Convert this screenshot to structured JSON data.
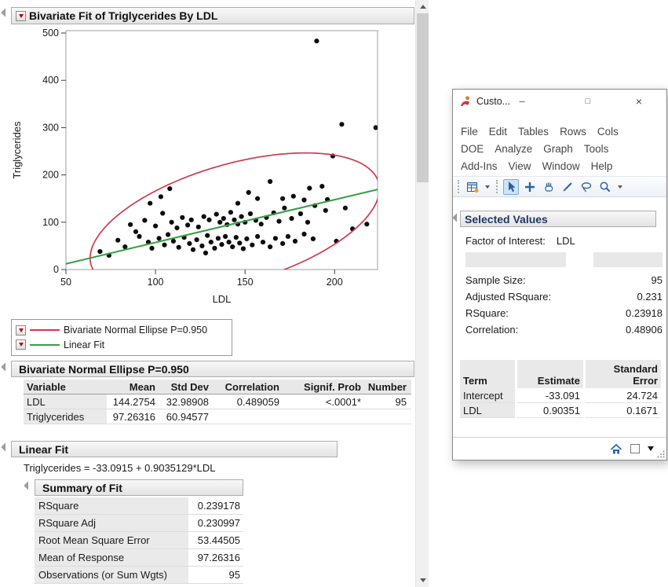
{
  "main_report": {
    "title": "Bivariate Fit of Triglycerides By LDL",
    "legend": {
      "items": [
        {
          "label": "Bivariate Normal Ellipse P=0.950",
          "color": "#cf3950"
        },
        {
          "label": "Linear Fit",
          "color": "#359e45"
        }
      ]
    },
    "ellipse_section": {
      "title": "Bivariate Normal Ellipse P=0.950",
      "table": {
        "columns": [
          "Variable",
          "Mean",
          "Std Dev",
          "Correlation",
          "Signif. Prob",
          "Number"
        ],
        "rows": [
          [
            "LDL",
            "144.2754",
            "32.98908",
            "0.489059",
            "<.0001*",
            "95"
          ],
          [
            "Triglycerides",
            "97.26316",
            "60.94577",
            "",
            "",
            ""
          ]
        ]
      }
    },
    "linear_fit_section": {
      "title": "Linear Fit",
      "equation": "Triglycerides = -33.0915 + 0.9035129*LDL"
    },
    "summary_of_fit": {
      "title": "Summary of Fit",
      "rows": [
        {
          "label": "RSquare",
          "value": "0.239178"
        },
        {
          "label": "RSquare Adj",
          "value": "0.230997"
        },
        {
          "label": "Root Mean Square Error",
          "value": "53.44505"
        },
        {
          "label": "Mean of Response",
          "value": "97.26316"
        },
        {
          "label": "Observations (or Sum Wgts)",
          "value": "95"
        }
      ]
    }
  },
  "chart_data": {
    "type": "scatter",
    "xlabel": "LDL",
    "ylabel": "Triglycerides",
    "xlim": [
      50,
      224
    ],
    "ylim": [
      0,
      505
    ],
    "xticks": [
      50,
      100,
      150,
      200
    ],
    "yticks": [
      0,
      100,
      200,
      300,
      400,
      500
    ],
    "points": [
      [
        190,
        483
      ],
      [
        204,
        307
      ],
      [
        223,
        300
      ],
      [
        199,
        240
      ],
      [
        164,
        186
      ],
      [
        171,
        150
      ],
      [
        177,
        155
      ],
      [
        183,
        147
      ],
      [
        186,
        172
      ],
      [
        193,
        176
      ],
      [
        196,
        148
      ],
      [
        152,
        163
      ],
      [
        157,
        150
      ],
      [
        146,
        140
      ],
      [
        108,
        171
      ],
      [
        103,
        154
      ],
      [
        97,
        140
      ],
      [
        201,
        60
      ],
      [
        210,
        86
      ],
      [
        218,
        96
      ],
      [
        206,
        130
      ],
      [
        69,
        38
      ],
      [
        74,
        30
      ],
      [
        79,
        62
      ],
      [
        83,
        48
      ],
      [
        86,
        95
      ],
      [
        89,
        80
      ],
      [
        91,
        70
      ],
      [
        94,
        104
      ],
      [
        96,
        58
      ],
      [
        98,
        45
      ],
      [
        100,
        92
      ],
      [
        102,
        66
      ],
      [
        104,
        119
      ],
      [
        105,
        52
      ],
      [
        107,
        74
      ],
      [
        109,
        100
      ],
      [
        110,
        60
      ],
      [
        112,
        88
      ],
      [
        113,
        47
      ],
      [
        115,
        110
      ],
      [
        116,
        68
      ],
      [
        118,
        94
      ],
      [
        119,
        55
      ],
      [
        120,
        105
      ],
      [
        121,
        42
      ],
      [
        123,
        63
      ],
      [
        124,
        90
      ],
      [
        126,
        50
      ],
      [
        127,
        112
      ],
      [
        128,
        35
      ],
      [
        129,
        72
      ],
      [
        130,
        105
      ],
      [
        131,
        58
      ],
      [
        133,
        45
      ],
      [
        134,
        117
      ],
      [
        135,
        66
      ],
      [
        136,
        100
      ],
      [
        137,
        53
      ],
      [
        138,
        108
      ],
      [
        139,
        70
      ],
      [
        140,
        95
      ],
      [
        141,
        58
      ],
      [
        142,
        121
      ],
      [
        143,
        48
      ],
      [
        144,
        105
      ],
      [
        145,
        68
      ],
      [
        146,
        96
      ],
      [
        147,
        56
      ],
      [
        148,
        112
      ],
      [
        149,
        44
      ],
      [
        150,
        100
      ],
      [
        151,
        65
      ],
      [
        153,
        118
      ],
      [
        154,
        52
      ],
      [
        156,
        104
      ],
      [
        157,
        70
      ],
      [
        159,
        96
      ],
      [
        160,
        58
      ],
      [
        162,
        110
      ],
      [
        164,
        48
      ],
      [
        166,
        120
      ],
      [
        167,
        66
      ],
      [
        169,
        102
      ],
      [
        171,
        55
      ],
      [
        172,
        130
      ],
      [
        174,
        70
      ],
      [
        176,
        108
      ],
      [
        178,
        60
      ],
      [
        181,
        118
      ],
      [
        183,
        75
      ],
      [
        185,
        100
      ],
      [
        188,
        65
      ],
      [
        189,
        135
      ],
      [
        195,
        125
      ]
    ],
    "linear_fit": {
      "intercept": -33.0915,
      "slope": 0.9035129,
      "color": "#359e45"
    },
    "ellipse": {
      "mean_x": 144.2754,
      "sd_x": 32.98908,
      "mean_y": 97.26316,
      "sd_y": 60.94577,
      "correlation": 0.489059,
      "p": 0.95,
      "k": 2.448,
      "color": "#cf3950"
    }
  },
  "tool_window": {
    "title": "Custo...",
    "window_buttons": {
      "minimize": "–",
      "maximize": "□",
      "close": "×"
    },
    "menu_rows": [
      [
        "File",
        "Edit",
        "Tables",
        "Rows",
        "Cols"
      ],
      [
        "DOE",
        "Analyze",
        "Graph",
        "Tools"
      ],
      [
        "Add-Ins",
        "View",
        "Window",
        "Help"
      ]
    ],
    "toolbar": {
      "tools": [
        "new-data-table",
        "arrow",
        "selection-cross",
        "hand",
        "brush",
        "lasso",
        "magnifier"
      ],
      "selected_tool": "arrow"
    },
    "selected_values": {
      "title": "Selected Values",
      "factor_label": "Factor of Interest:",
      "factor_value": "LDL",
      "stats": [
        {
          "label": "Sample Size:",
          "value": "95"
        },
        {
          "label": "Adjusted RSquare:",
          "value": "0.231"
        },
        {
          "label": "RSquare:",
          "value": "0.23918"
        },
        {
          "label": "Correlation:",
          "value": "0.48906"
        }
      ],
      "table": {
        "columns": [
          "Term",
          "Estimate",
          "Standard Error"
        ],
        "rows": [
          [
            "Intercept",
            "-33.091",
            "24.724"
          ],
          [
            "LDL",
            "0.90351",
            "0.1671"
          ]
        ]
      }
    }
  },
  "icons": {
    "disclosure_open": "gray-corner-triangle",
    "red_triangle_menu": "red-down-triangle",
    "home": "blue-house",
    "status_dropdown": "black-down-triangle",
    "status_checkbox": "white-square"
  }
}
